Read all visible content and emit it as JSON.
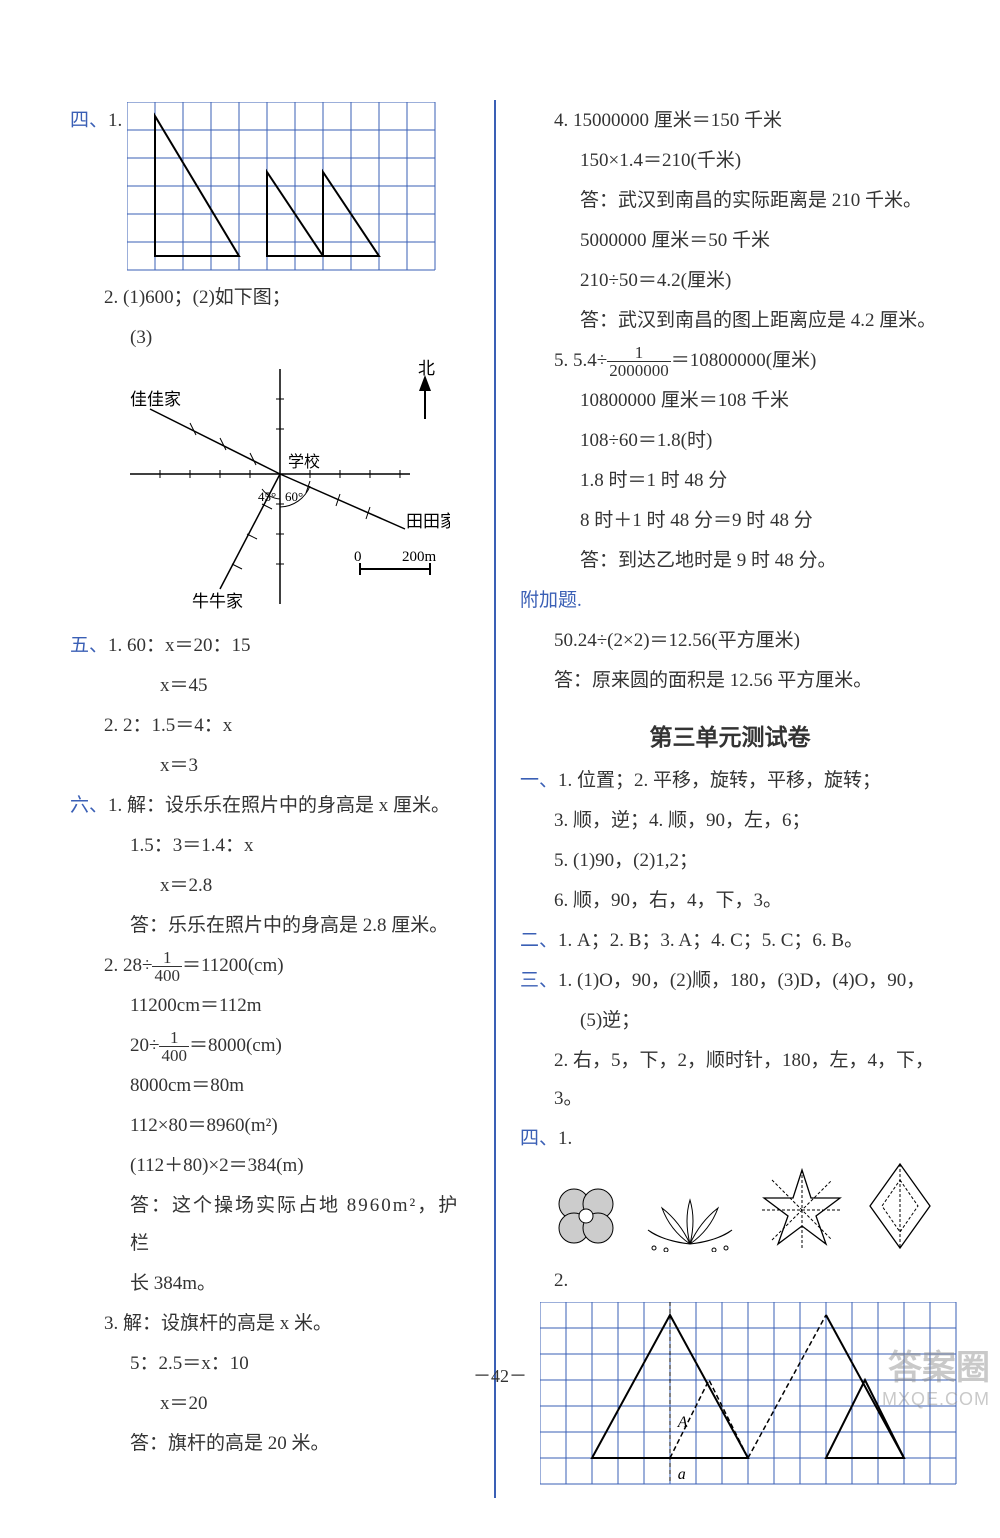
{
  "left": {
    "sec4": {
      "label": "四、",
      "item1": "1.",
      "grid1": {
        "cols": 11,
        "rows": 6,
        "cell": 28,
        "stroke": "#3a5fb5",
        "triangles": [
          {
            "pts": [
              [
                1,
                5.5
              ],
              [
                1,
                0.5
              ],
              [
                4,
                5.5
              ]
            ],
            "stroke": "#000"
          },
          {
            "pts": [
              [
                5,
                5.5
              ],
              [
                5,
                2.5
              ],
              [
                7,
                5.5
              ]
            ],
            "stroke": "#000"
          },
          {
            "pts": [
              [
                7,
                5.5
              ],
              [
                7,
                2.5
              ],
              [
                9,
                5.5
              ]
            ],
            "stroke": "#000"
          }
        ]
      },
      "item2": "2. (1)600；(2)如下图；",
      "item2_3": "(3)",
      "compass": {
        "north": "北",
        "labels": {
          "jiajia": "佳佳家",
          "school": "学校",
          "tiantian": "田田家",
          "niuniu": "牛牛家",
          "angle1": "45°",
          "angle2": "60°",
          "scale_0": "0",
          "scale_200": "200m"
        }
      }
    },
    "sec5": {
      "label": "五、",
      "l1": "1. 60：x＝20：15",
      "l1b": "x＝45",
      "l2": "2. 2：1.5＝4：x",
      "l2b": "x＝3"
    },
    "sec6": {
      "label": "六、",
      "p1_a": "1. 解：设乐乐在照片中的身高是 x 厘米。",
      "p1_b": "1.5：3＝1.4：x",
      "p1_c": "x＝2.8",
      "p1_d": "答：乐乐在照片中的身高是 2.8 厘米。",
      "p2_a_prefix": "2. 28÷",
      "p2_a_frac_num": "1",
      "p2_a_frac_den": "400",
      "p2_a_suffix": "＝11200(cm)",
      "p2_b": "11200cm＝112m",
      "p2_c_prefix": "20÷",
      "p2_c_frac_num": "1",
      "p2_c_frac_den": "400",
      "p2_c_suffix": "＝8000(cm)",
      "p2_d": "8000cm＝80m",
      "p2_e": "112×80＝8960(m²)",
      "p2_f": "(112＋80)×2＝384(m)",
      "p2_g": "答：这个操场实际占地 8960m²，护栏",
      "p2_h": "长 384m。",
      "p3_a": "3. 解：设旗杆的高是 x 米。",
      "p3_b": "5：2.5＝x：10",
      "p3_c": "x＝20",
      "p3_d": "答：旗杆的高是 20 米。"
    }
  },
  "right": {
    "p4": {
      "a": "4. 15000000 厘米＝150 千米",
      "b": "150×1.4＝210(千米)",
      "c": "答：武汉到南昌的实际距离是 210 千米。",
      "d": "5000000 厘米＝50 千米",
      "e": "210÷50＝4.2(厘米)",
      "f": "答：武汉到南昌的图上距离应是 4.2 厘米。"
    },
    "p5": {
      "a_prefix": "5. 5.4÷",
      "a_num": "1",
      "a_den": "2000000",
      "a_suffix": "＝10800000(厘米)",
      "b": "10800000 厘米＝108 千米",
      "c": "108÷60＝1.8(时)",
      "d": "1.8 时＝1 时 48 分",
      "e": "8 时＋1 时 48 分＝9 时 48 分",
      "f": "答：到达乙地时是 9 时 48 分。"
    },
    "extra": {
      "label": "附加题.",
      "a": "50.24÷(2×2)＝12.56(平方厘米)",
      "b": "答：原来圆的面积是 12.56 平方厘米。"
    },
    "unit3_title": "第三单元测试卷",
    "u1": {
      "label": "一、",
      "l1": "1. 位置；2. 平移，旋转，平移，旋转；",
      "l2": "3. 顺，逆；4. 顺，90，左，6；",
      "l3": "5. (1)90，(2)1,2；",
      "l4": "6. 顺，90，右，4，下，3。"
    },
    "u2": {
      "label": "二、",
      "l1": "1. A；2. B；3. A；4. C；5. C；6. B。"
    },
    "u3": {
      "label": "三、",
      "l1": "1. (1)O，90，(2)顺，180，(3)D，(4)O，90，",
      "l1b": "(5)逆；",
      "l2": "2. 右，5，下，2，顺时针，180，左，4，下，3。"
    },
    "u4": {
      "label": "四、",
      "item1": "1.",
      "item2": "2.",
      "grid2": {
        "cols": 16,
        "rows": 7,
        "cell": 26,
        "stroke": "#3a5fb5",
        "labelA": "A",
        "labela": "a"
      }
    }
  },
  "page_num": "－42－",
  "watermark": {
    "line1": "答案圈",
    "line2": "MXQE.COM"
  },
  "colors": {
    "blue": "#3a5fb5",
    "black": "#222"
  }
}
